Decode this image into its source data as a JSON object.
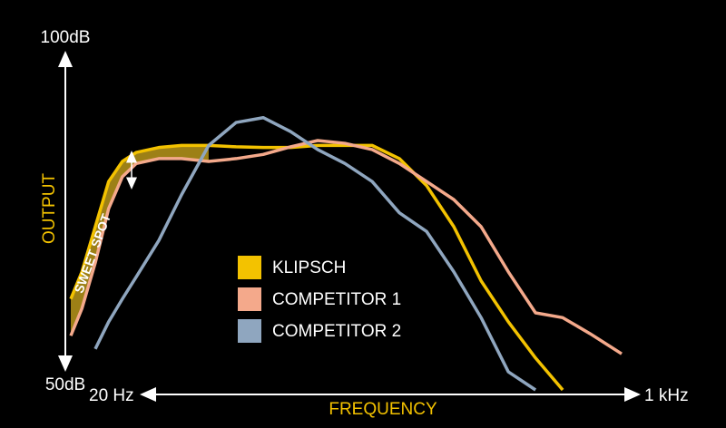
{
  "chart_data": {
    "type": "line",
    "x_label": "FREQUENCY",
    "y_label": "OUTPUT",
    "annotation": "SWEET SPOT",
    "x": [
      20,
      21.6,
      23.7,
      26,
      28.6,
      31.5,
      36.8,
      43.1,
      52,
      62.9,
      75.9,
      91.7,
      110.7,
      133.7,
      161.5,
      195,
      235.6,
      284.4,
      343.6,
      415,
      501,
      605,
      731,
      910
    ],
    "series": [
      {
        "name": "KLIPSCH",
        "color": "#f3c200",
        "values": [
          63.1,
          67,
          73.5,
          80,
          82.9,
          84.2,
          84.9,
          85.2,
          85.2,
          85,
          84.9,
          84.9,
          85.2,
          85.2,
          85.2,
          83.3,
          79.4,
          73.5,
          65.7,
          59.8,
          54.6,
          50,
          null,
          null
        ]
      },
      {
        "name": "COMPETITOR 1",
        "color": "#f4a98b",
        "values": [
          57.8,
          61.7,
          68.3,
          76.1,
          80.7,
          82.6,
          83.3,
          83.3,
          82.9,
          83.3,
          83.9,
          85,
          85.9,
          85.5,
          84.6,
          82.6,
          80,
          77.4,
          73.5,
          67,
          61.1,
          60.4,
          58.1,
          55.2
        ]
      },
      {
        "name": "COMPETITOR 2",
        "color": "#8fa6bf",
        "values": [
          null,
          null,
          55.9,
          59.8,
          63.1,
          66.3,
          71.5,
          78.1,
          85.2,
          88.5,
          89.2,
          87.2,
          84.6,
          82.6,
          80,
          75.5,
          72.8,
          67,
          60.4,
          52.6,
          50,
          null,
          null,
          null
        ]
      }
    ],
    "xlim": [
      20,
      1000
    ],
    "xscale": "log",
    "xticks": [
      {
        "value": 20,
        "label": "20 Hz"
      },
      {
        "value": 1000,
        "label": "1 kHz"
      }
    ],
    "ylim": [
      50,
      100
    ],
    "yticks": [
      {
        "value": 50,
        "label": "50dB"
      },
      {
        "value": 100,
        "label": "100dB"
      }
    ],
    "grid": false
  }
}
